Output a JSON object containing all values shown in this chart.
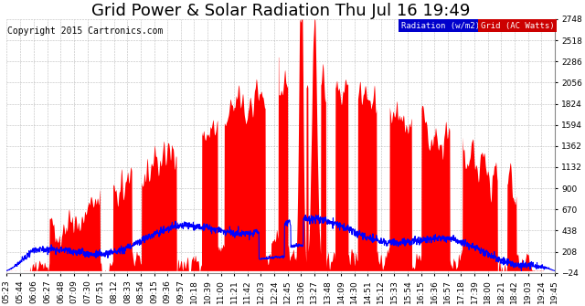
{
  "title": "Grid Power & Solar Radiation Thu Jul 16 19:49",
  "copyright": "Copyright 2015 Cartronics.com",
  "legend_labels": [
    "Radiation (w/m2)",
    "Grid (AC Watts)"
  ],
  "legend_colors": [
    "#0000cc",
    "#cc0000"
  ],
  "background_color": "#ffffff",
  "plot_bg_color": "#ffffff",
  "grid_color": "#bbbbbb",
  "ylim": [
    -23.5,
    2748.5
  ],
  "yticks": [
    -23.5,
    207.5,
    438.5,
    669.5,
    900.5,
    1131.5,
    1362.5,
    1593.5,
    1824.5,
    2055.5,
    2286.5,
    2517.5,
    2748.5
  ],
  "xtick_labels": [
    "05:23",
    "05:44",
    "06:06",
    "06:27",
    "06:48",
    "07:09",
    "07:30",
    "07:51",
    "08:12",
    "08:33",
    "08:54",
    "09:15",
    "09:36",
    "09:57",
    "10:18",
    "10:39",
    "11:00",
    "11:21",
    "11:42",
    "12:03",
    "12:24",
    "12:45",
    "13:06",
    "13:27",
    "13:48",
    "14:09",
    "14:30",
    "14:51",
    "15:12",
    "15:33",
    "15:54",
    "16:15",
    "16:36",
    "16:57",
    "17:18",
    "17:39",
    "18:00",
    "18:21",
    "18:42",
    "19:03",
    "19:24",
    "19:45"
  ],
  "title_fontsize": 13,
  "axis_fontsize": 6.5,
  "copyright_fontsize": 7
}
